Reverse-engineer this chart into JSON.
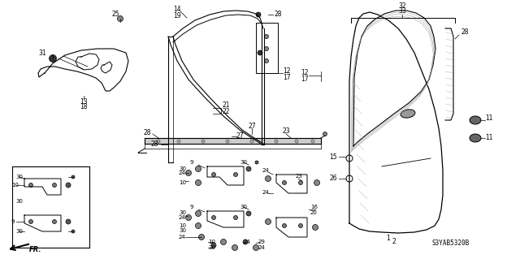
{
  "bg_color": "#ffffff",
  "part_number": "S3YAB5320B",
  "fig_width": 6.4,
  "fig_height": 3.19,
  "dpi": 100
}
